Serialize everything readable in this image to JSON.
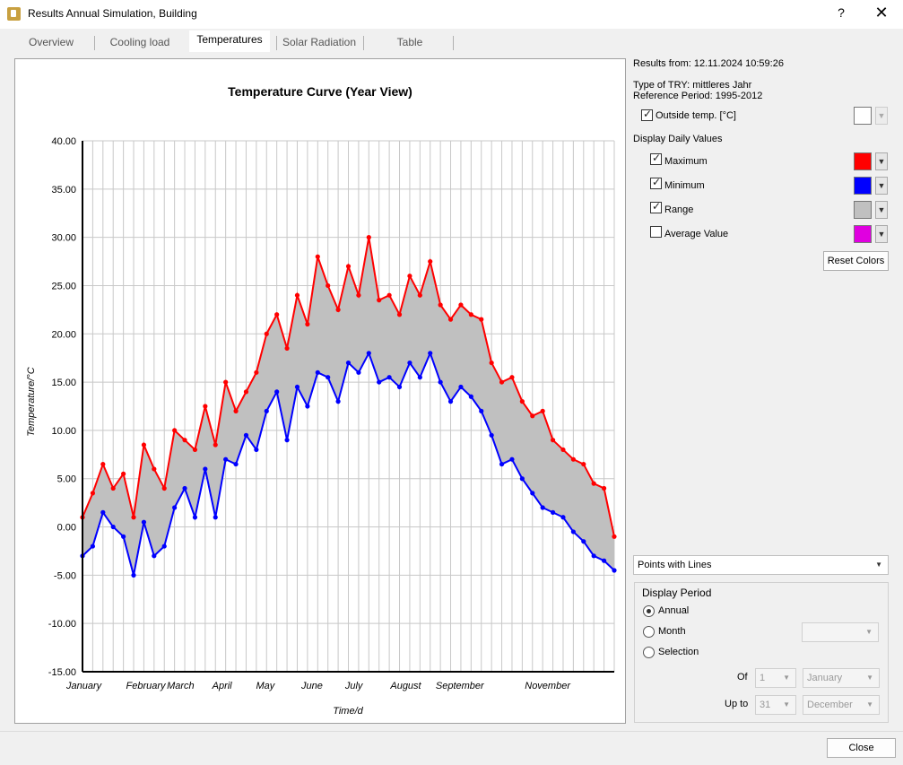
{
  "window": {
    "title": "Results Annual Simulation, Building",
    "help": "?",
    "close": "✕"
  },
  "tabs": [
    "Overview",
    "Cooling load",
    "Temperatures",
    "Solar Radiation",
    "Table"
  ],
  "active_tab": "Temperatures",
  "info": {
    "results_from": "Results from:  12.11.2024 10:59:26",
    "try_type": "Type of TRY: mittleres Jahr",
    "reference": "Reference Period: 1995-2012"
  },
  "options": {
    "outside_temp": {
      "label": "Outside temp. [°C]",
      "checked": true,
      "color": "#ffffff"
    },
    "daily_header": "Display Daily Values",
    "daily": [
      {
        "label": "Maximum",
        "checked": true,
        "color": "#ff0000"
      },
      {
        "label": "Minimum",
        "checked": true,
        "color": "#0000ff"
      },
      {
        "label": "Range",
        "checked": true,
        "color": "#c0c0c0"
      },
      {
        "label": "Average Value",
        "checked": false,
        "color": "#e000e0"
      }
    ],
    "reset_colors": "Reset Colors"
  },
  "display_mode": "Points with Lines",
  "period": {
    "title": "Display Period",
    "annual": "Annual",
    "month": "Month",
    "selection": "Selection",
    "selected": "annual",
    "of_label": "Of",
    "upto_label": "Up to",
    "of_day": "1",
    "of_month": "January",
    "upto_day": "31",
    "upto_month": "December"
  },
  "close_button": "Close",
  "chart_data": {
    "type": "line",
    "title": "Temperature Curve (Year View)",
    "xlabel": "Time/d",
    "ylabel": "Temperature/°C",
    "ylim": [
      -15,
      40
    ],
    "yticks": [
      "-15.00",
      "-10.00",
      "-5.00",
      "0.00",
      "5.00",
      "10.00",
      "15.00",
      "20.00",
      "25.00",
      "30.00",
      "35.00",
      "40.00"
    ],
    "xlim": [
      1,
      365
    ],
    "month_labels": [
      {
        "label": "January",
        "day": 1
      },
      {
        "label": "February",
        "day": 32
      },
      {
        "label": "March",
        "day": 60
      },
      {
        "label": "April",
        "day": 91
      },
      {
        "label": "May",
        "day": 121
      },
      {
        "label": "June",
        "day": 152
      },
      {
        "label": "July",
        "day": 182
      },
      {
        "label": "August",
        "day": 213
      },
      {
        "label": "September",
        "day": 244
      },
      {
        "label": "November",
        "day": 305
      }
    ],
    "grid": true,
    "series": [
      {
        "name": "Maximum",
        "color": "#ff0000",
        "x": [
          1,
          8,
          15,
          22,
          29,
          36,
          43,
          50,
          57,
          64,
          71,
          78,
          85,
          92,
          99,
          106,
          113,
          120,
          127,
          134,
          141,
          148,
          155,
          162,
          169,
          176,
          183,
          190,
          197,
          204,
          211,
          218,
          225,
          232,
          239,
          246,
          253,
          260,
          267,
          274,
          281,
          288,
          295,
          302,
          309,
          316,
          323,
          330,
          337,
          344,
          351,
          358,
          365
        ],
        "values": [
          1.0,
          3.5,
          6.5,
          4.0,
          5.5,
          1.0,
          8.5,
          6.0,
          4.0,
          10.0,
          9.0,
          8.0,
          12.5,
          8.5,
          15.0,
          12.0,
          14.0,
          16.0,
          20.0,
          22.0,
          18.5,
          24.0,
          21.0,
          28.0,
          25.0,
          22.5,
          27.0,
          24.0,
          30.0,
          23.5,
          24.0,
          22.0,
          26.0,
          24.0,
          27.5,
          23.0,
          21.5,
          23.0,
          22.0,
          21.5,
          17.0,
          15.0,
          15.5,
          13.0,
          11.5,
          12.0,
          9.0,
          8.0,
          7.0,
          6.5,
          4.5,
          4.0,
          -1.0
        ]
      },
      {
        "name": "Minimum",
        "color": "#0000ff",
        "x": [
          1,
          8,
          15,
          22,
          29,
          36,
          43,
          50,
          57,
          64,
          71,
          78,
          85,
          92,
          99,
          106,
          113,
          120,
          127,
          134,
          141,
          148,
          155,
          162,
          169,
          176,
          183,
          190,
          197,
          204,
          211,
          218,
          225,
          232,
          239,
          246,
          253,
          260,
          267,
          274,
          281,
          288,
          295,
          302,
          309,
          316,
          323,
          330,
          337,
          344,
          351,
          358,
          365
        ],
        "values": [
          -3.0,
          -2.0,
          1.5,
          0.0,
          -1.0,
          -5.0,
          0.5,
          -3.0,
          -2.0,
          2.0,
          4.0,
          1.0,
          6.0,
          1.0,
          7.0,
          6.5,
          9.5,
          8.0,
          12.0,
          14.0,
          9.0,
          14.5,
          12.5,
          16.0,
          15.5,
          13.0,
          17.0,
          16.0,
          18.0,
          15.0,
          15.5,
          14.5,
          17.0,
          15.5,
          18.0,
          15.0,
          13.0,
          14.5,
          13.5,
          12.0,
          9.5,
          6.5,
          7.0,
          5.0,
          3.5,
          2.0,
          1.5,
          1.0,
          -0.5,
          -1.5,
          -3.0,
          -3.5,
          -4.5
        ]
      }
    ]
  }
}
